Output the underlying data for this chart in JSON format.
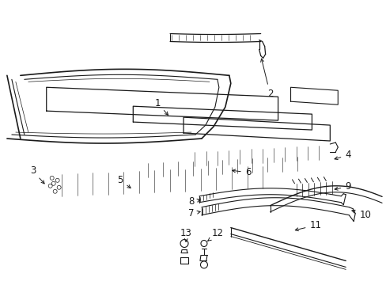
{
  "background": "#ffffff",
  "line_color": "#1a1a1a",
  "label_fontsize": 8.5,
  "dpi": 100,
  "figw": 4.89,
  "figh": 3.6
}
